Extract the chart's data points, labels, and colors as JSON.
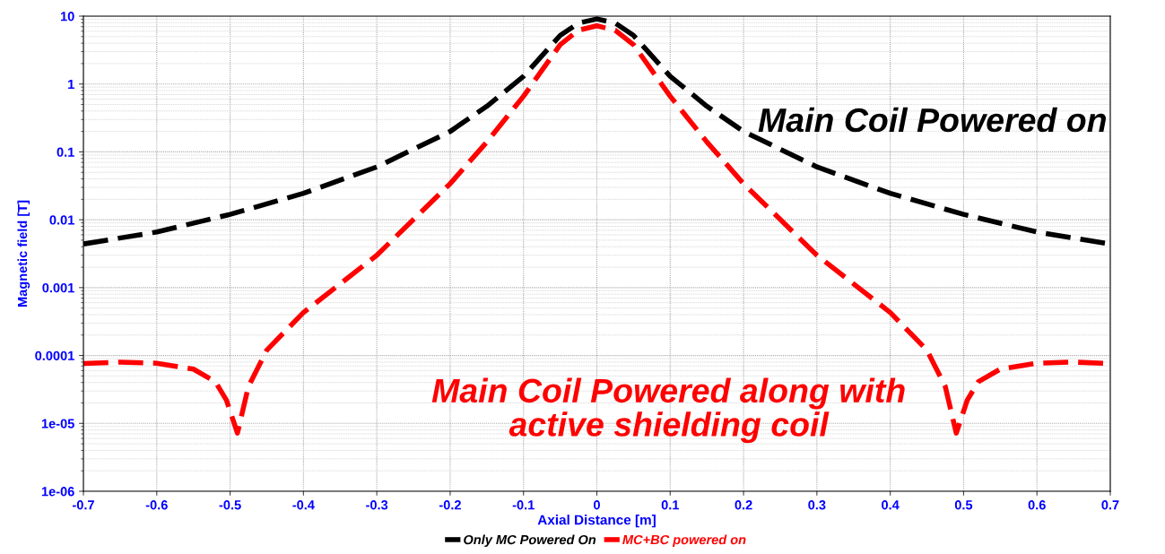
{
  "chart_data": {
    "type": "line",
    "xlabel": "Axial Distance [m]",
    "ylabel": "Magnetic field [T]",
    "log": "y",
    "grid": true,
    "legend": "bottom",
    "line_style": "dashed",
    "marker": "none",
    "xlim": [
      -0.7,
      0.7
    ],
    "xticks": [
      -0.7,
      -0.6,
      -0.5,
      -0.4,
      -0.3,
      -0.2,
      -0.1,
      0,
      0.1,
      0.2,
      0.3,
      0.4,
      0.5,
      0.6,
      0.7
    ],
    "ylim": [
      1e-06,
      10
    ],
    "yticks": [
      {
        "value": 10,
        "label": "10"
      },
      {
        "value": 1,
        "label": "1"
      },
      {
        "value": 0.1,
        "label": "0.1"
      },
      {
        "value": 0.01,
        "label": "0.01"
      },
      {
        "value": 0.001,
        "label": "0.001"
      },
      {
        "value": 0.0001,
        "label": "0.0001"
      },
      {
        "value": 1e-05,
        "label": "1e-05"
      },
      {
        "value": 1e-06,
        "label": "1e-06"
      }
    ],
    "annotations": [
      "Main Coil Powered on",
      "Main Coil Powered along with\nactive shielding coil"
    ],
    "series": [
      {
        "name": "Only MC Powered On",
        "color": "#000000",
        "x": [
          -0.7,
          -0.6,
          -0.5,
          -0.4,
          -0.3,
          -0.2,
          -0.15,
          -0.1,
          -0.05,
          -0.025,
          0,
          0.025,
          0.05,
          0.1,
          0.15,
          0.2,
          0.3,
          0.4,
          0.5,
          0.6,
          0.7
        ],
        "values": [
          0.0044,
          0.0066,
          0.012,
          0.0245,
          0.06,
          0.2,
          0.47,
          1.3,
          5.2,
          7.9,
          9.1,
          7.9,
          5.2,
          1.3,
          0.47,
          0.2,
          0.06,
          0.0245,
          0.012,
          0.0066,
          0.0044
        ]
      },
      {
        "name": "MC+BC powered on",
        "color": "#ff0000",
        "x": [
          -0.7,
          -0.65,
          -0.6,
          -0.55,
          -0.52,
          -0.505,
          -0.49,
          -0.475,
          -0.45,
          -0.4,
          -0.3,
          -0.2,
          -0.15,
          -0.1,
          -0.05,
          -0.025,
          0,
          0.025,
          0.05,
          0.1,
          0.15,
          0.2,
          0.3,
          0.4,
          0.45,
          0.475,
          0.49,
          0.505,
          0.52,
          0.55,
          0.6,
          0.65,
          0.7
        ],
        "values": [
          7.6e-05,
          8e-05,
          7.7e-05,
          6.3e-05,
          4.1e-05,
          2.2e-05,
          7.2e-06,
          3.5e-05,
          0.00012,
          0.00043,
          0.003,
          0.034,
          0.14,
          0.66,
          3.8,
          6.2,
          7.2,
          6.2,
          3.8,
          0.66,
          0.14,
          0.034,
          0.003,
          0.00043,
          0.00012,
          3.5e-05,
          7.2e-06,
          2.2e-05,
          4.1e-05,
          6.3e-05,
          7.7e-05,
          8e-05,
          7.6e-05
        ]
      }
    ]
  }
}
